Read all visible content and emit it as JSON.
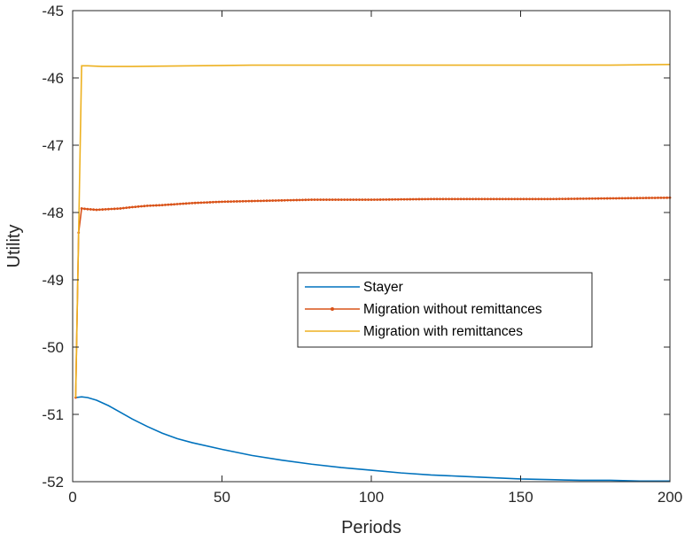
{
  "chart_data": {
    "type": "line",
    "xlabel": "Periods",
    "ylabel": "Utility",
    "xlim": [
      0,
      200
    ],
    "ylim": [
      -52,
      -45
    ],
    "xticks": [
      "0",
      "50",
      "100",
      "150",
      "200"
    ],
    "yticks": [
      "-52",
      "-51",
      "-50",
      "-49",
      "-48",
      "-47",
      "-46",
      "-45"
    ],
    "grid": false,
    "legend_position": "center-right",
    "series": [
      {
        "name": "Stayer",
        "color": "#0072BD",
        "marker": "none",
        "points": [
          [
            1,
            -50.75
          ],
          [
            3,
            -50.74
          ],
          [
            5,
            -50.75
          ],
          [
            8,
            -50.79
          ],
          [
            12,
            -50.87
          ],
          [
            16,
            -50.97
          ],
          [
            20,
            -51.07
          ],
          [
            25,
            -51.18
          ],
          [
            30,
            -51.28
          ],
          [
            35,
            -51.36
          ],
          [
            40,
            -51.42
          ],
          [
            50,
            -51.52
          ],
          [
            60,
            -51.61
          ],
          [
            70,
            -51.68
          ],
          [
            80,
            -51.74
          ],
          [
            90,
            -51.79
          ],
          [
            100,
            -51.83
          ],
          [
            110,
            -51.87
          ],
          [
            120,
            -51.9
          ],
          [
            130,
            -51.92
          ],
          [
            140,
            -51.94
          ],
          [
            150,
            -51.96
          ],
          [
            160,
            -51.97
          ],
          [
            170,
            -51.98
          ],
          [
            180,
            -51.98
          ],
          [
            190,
            -51.99
          ],
          [
            200,
            -51.99
          ]
        ]
      },
      {
        "name": "Migration without remittances",
        "color": "#D95319",
        "marker": "dot",
        "points": [
          [
            1,
            -50.75
          ],
          [
            2,
            -48.3
          ],
          [
            3,
            -47.94
          ],
          [
            5,
            -47.95
          ],
          [
            8,
            -47.96
          ],
          [
            12,
            -47.95
          ],
          [
            16,
            -47.94
          ],
          [
            20,
            -47.92
          ],
          [
            25,
            -47.9
          ],
          [
            30,
            -47.89
          ],
          [
            40,
            -47.86
          ],
          [
            50,
            -47.84
          ],
          [
            60,
            -47.83
          ],
          [
            70,
            -47.82
          ],
          [
            80,
            -47.81
          ],
          [
            90,
            -47.81
          ],
          [
            100,
            -47.81
          ],
          [
            120,
            -47.8
          ],
          [
            140,
            -47.8
          ],
          [
            160,
            -47.8
          ],
          [
            180,
            -47.79
          ],
          [
            200,
            -47.78
          ]
        ]
      },
      {
        "name": "Migration with remittances",
        "color": "#EDB120",
        "marker": "none",
        "points": [
          [
            1,
            -50.75
          ],
          [
            2,
            -48.3
          ],
          [
            3,
            -45.82
          ],
          [
            5,
            -45.82
          ],
          [
            10,
            -45.83
          ],
          [
            20,
            -45.83
          ],
          [
            40,
            -45.82
          ],
          [
            60,
            -45.81
          ],
          [
            80,
            -45.81
          ],
          [
            100,
            -45.81
          ],
          [
            120,
            -45.81
          ],
          [
            140,
            -45.81
          ],
          [
            160,
            -45.81
          ],
          [
            180,
            -45.81
          ],
          [
            200,
            -45.8
          ]
        ]
      }
    ]
  }
}
